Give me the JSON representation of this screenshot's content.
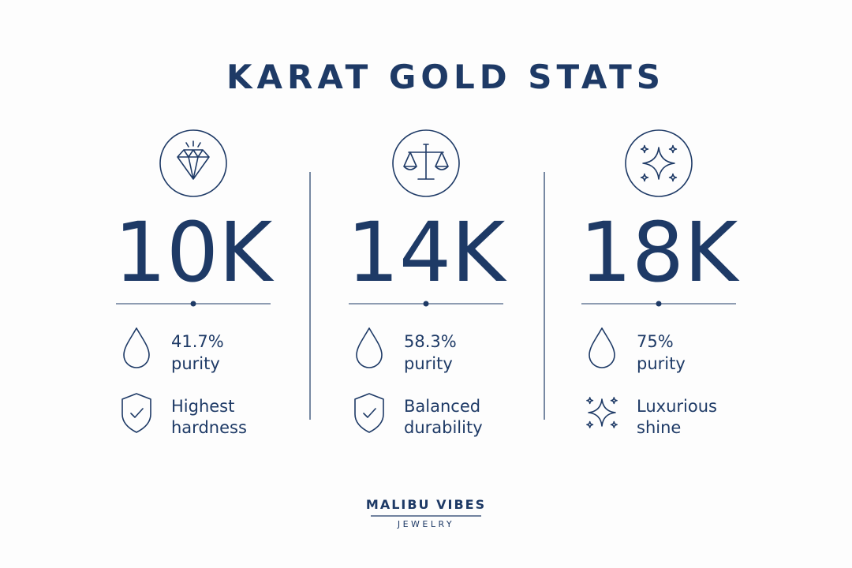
{
  "title": "KARAT GOLD STATS",
  "columns": [
    {
      "karat": "10K",
      "purity": [
        "41.7%",
        "purity"
      ],
      "feature": [
        "Highest",
        "hardness"
      ]
    },
    {
      "karat": "14K",
      "purity": [
        "58.3%",
        "purity"
      ],
      "feature": [
        "Balanced",
        "durability"
      ]
    },
    {
      "karat": "18K",
      "purity": [
        "75%",
        "purity"
      ],
      "feature": [
        "Luxurious",
        "shine"
      ]
    }
  ],
  "brand": {
    "name": "MALIBU VIBES",
    "tagline": "JEWELRY"
  }
}
